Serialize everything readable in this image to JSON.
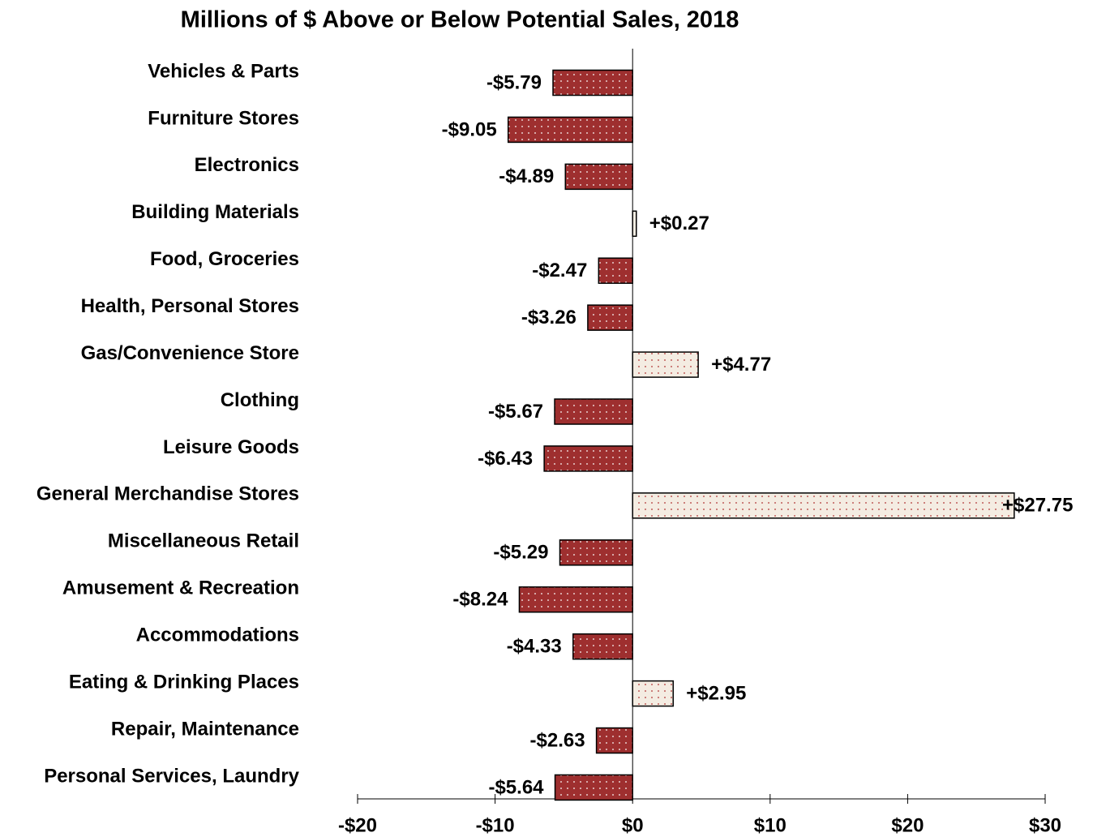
{
  "chart_data": {
    "type": "hbar",
    "title": "Millions of $ Above or Below Potential Sales, 2018",
    "categories": [
      "Vehicles & Parts",
      "Furniture Stores",
      "Electronics",
      "Building Materials",
      "Food, Groceries",
      "Health, Personal Stores",
      "Gas/Convenience Store",
      "Clothing",
      "Leisure Goods",
      "General Merchandise Stores",
      "Miscellaneous Retail",
      "Amusement & Recreation",
      "Accommodations",
      "Eating & Drinking Places",
      "Repair, Maintenance",
      "Personal Services, Laundry"
    ],
    "values": [
      -5.79,
      -9.05,
      -4.89,
      0.27,
      -2.47,
      -3.26,
      4.77,
      -5.67,
      -6.43,
      27.75,
      -5.29,
      -8.24,
      -4.33,
      2.95,
      -2.63,
      -5.64
    ],
    "value_labels": [
      "-$5.79",
      "-$9.05",
      "-$4.89",
      "+$0.27",
      "-$2.47",
      "-$3.26",
      "+$4.77",
      "-$5.67",
      "-$6.43",
      "+$27.75",
      "-$5.29",
      "-$8.24",
      "-$4.33",
      "+$2.95",
      "-$2.63",
      "-$5.64"
    ],
    "color_negative": "#9e2f2f",
    "color_positive": "#f4ece2",
    "xlim": [
      -20,
      30
    ],
    "xticks": [
      {
        "value": -20,
        "label": "-$20"
      },
      {
        "value": -10,
        "label": "-$10"
      },
      {
        "value": 0,
        "label": "$0"
      },
      {
        "value": 10,
        "label": "$10"
      },
      {
        "value": 20,
        "label": "$20"
      },
      {
        "value": 30,
        "label": "$30"
      }
    ]
  }
}
